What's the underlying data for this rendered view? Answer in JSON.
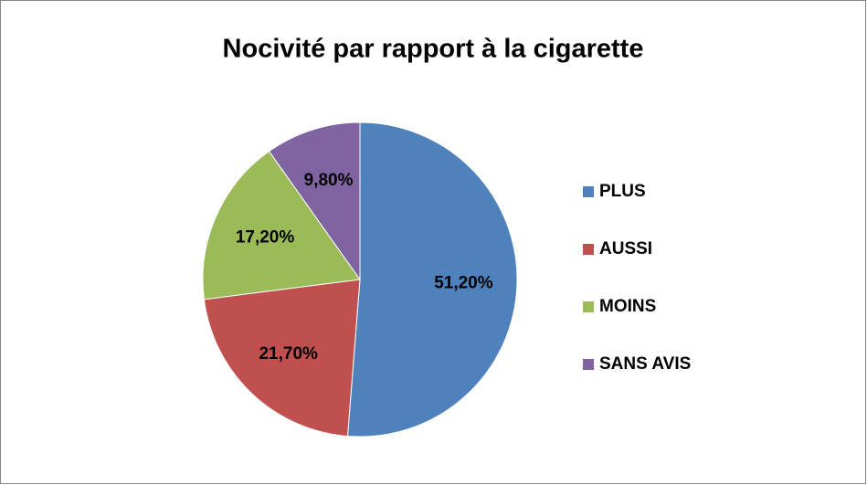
{
  "chart_data": {
    "type": "pie",
    "title": "Nocivité par rapport à la cigarette",
    "categories": [
      "PLUS",
      "AUSSI",
      "MOINS",
      "SANS AVIS"
    ],
    "values": [
      51.2,
      21.7,
      17.2,
      9.8
    ],
    "value_labels": [
      "51,20%",
      "21,70%",
      "17,20%",
      "9,80%"
    ],
    "colors": [
      "#4f81bd",
      "#c0504d",
      "#9bbb59",
      "#8064a2"
    ],
    "legend": "right"
  }
}
